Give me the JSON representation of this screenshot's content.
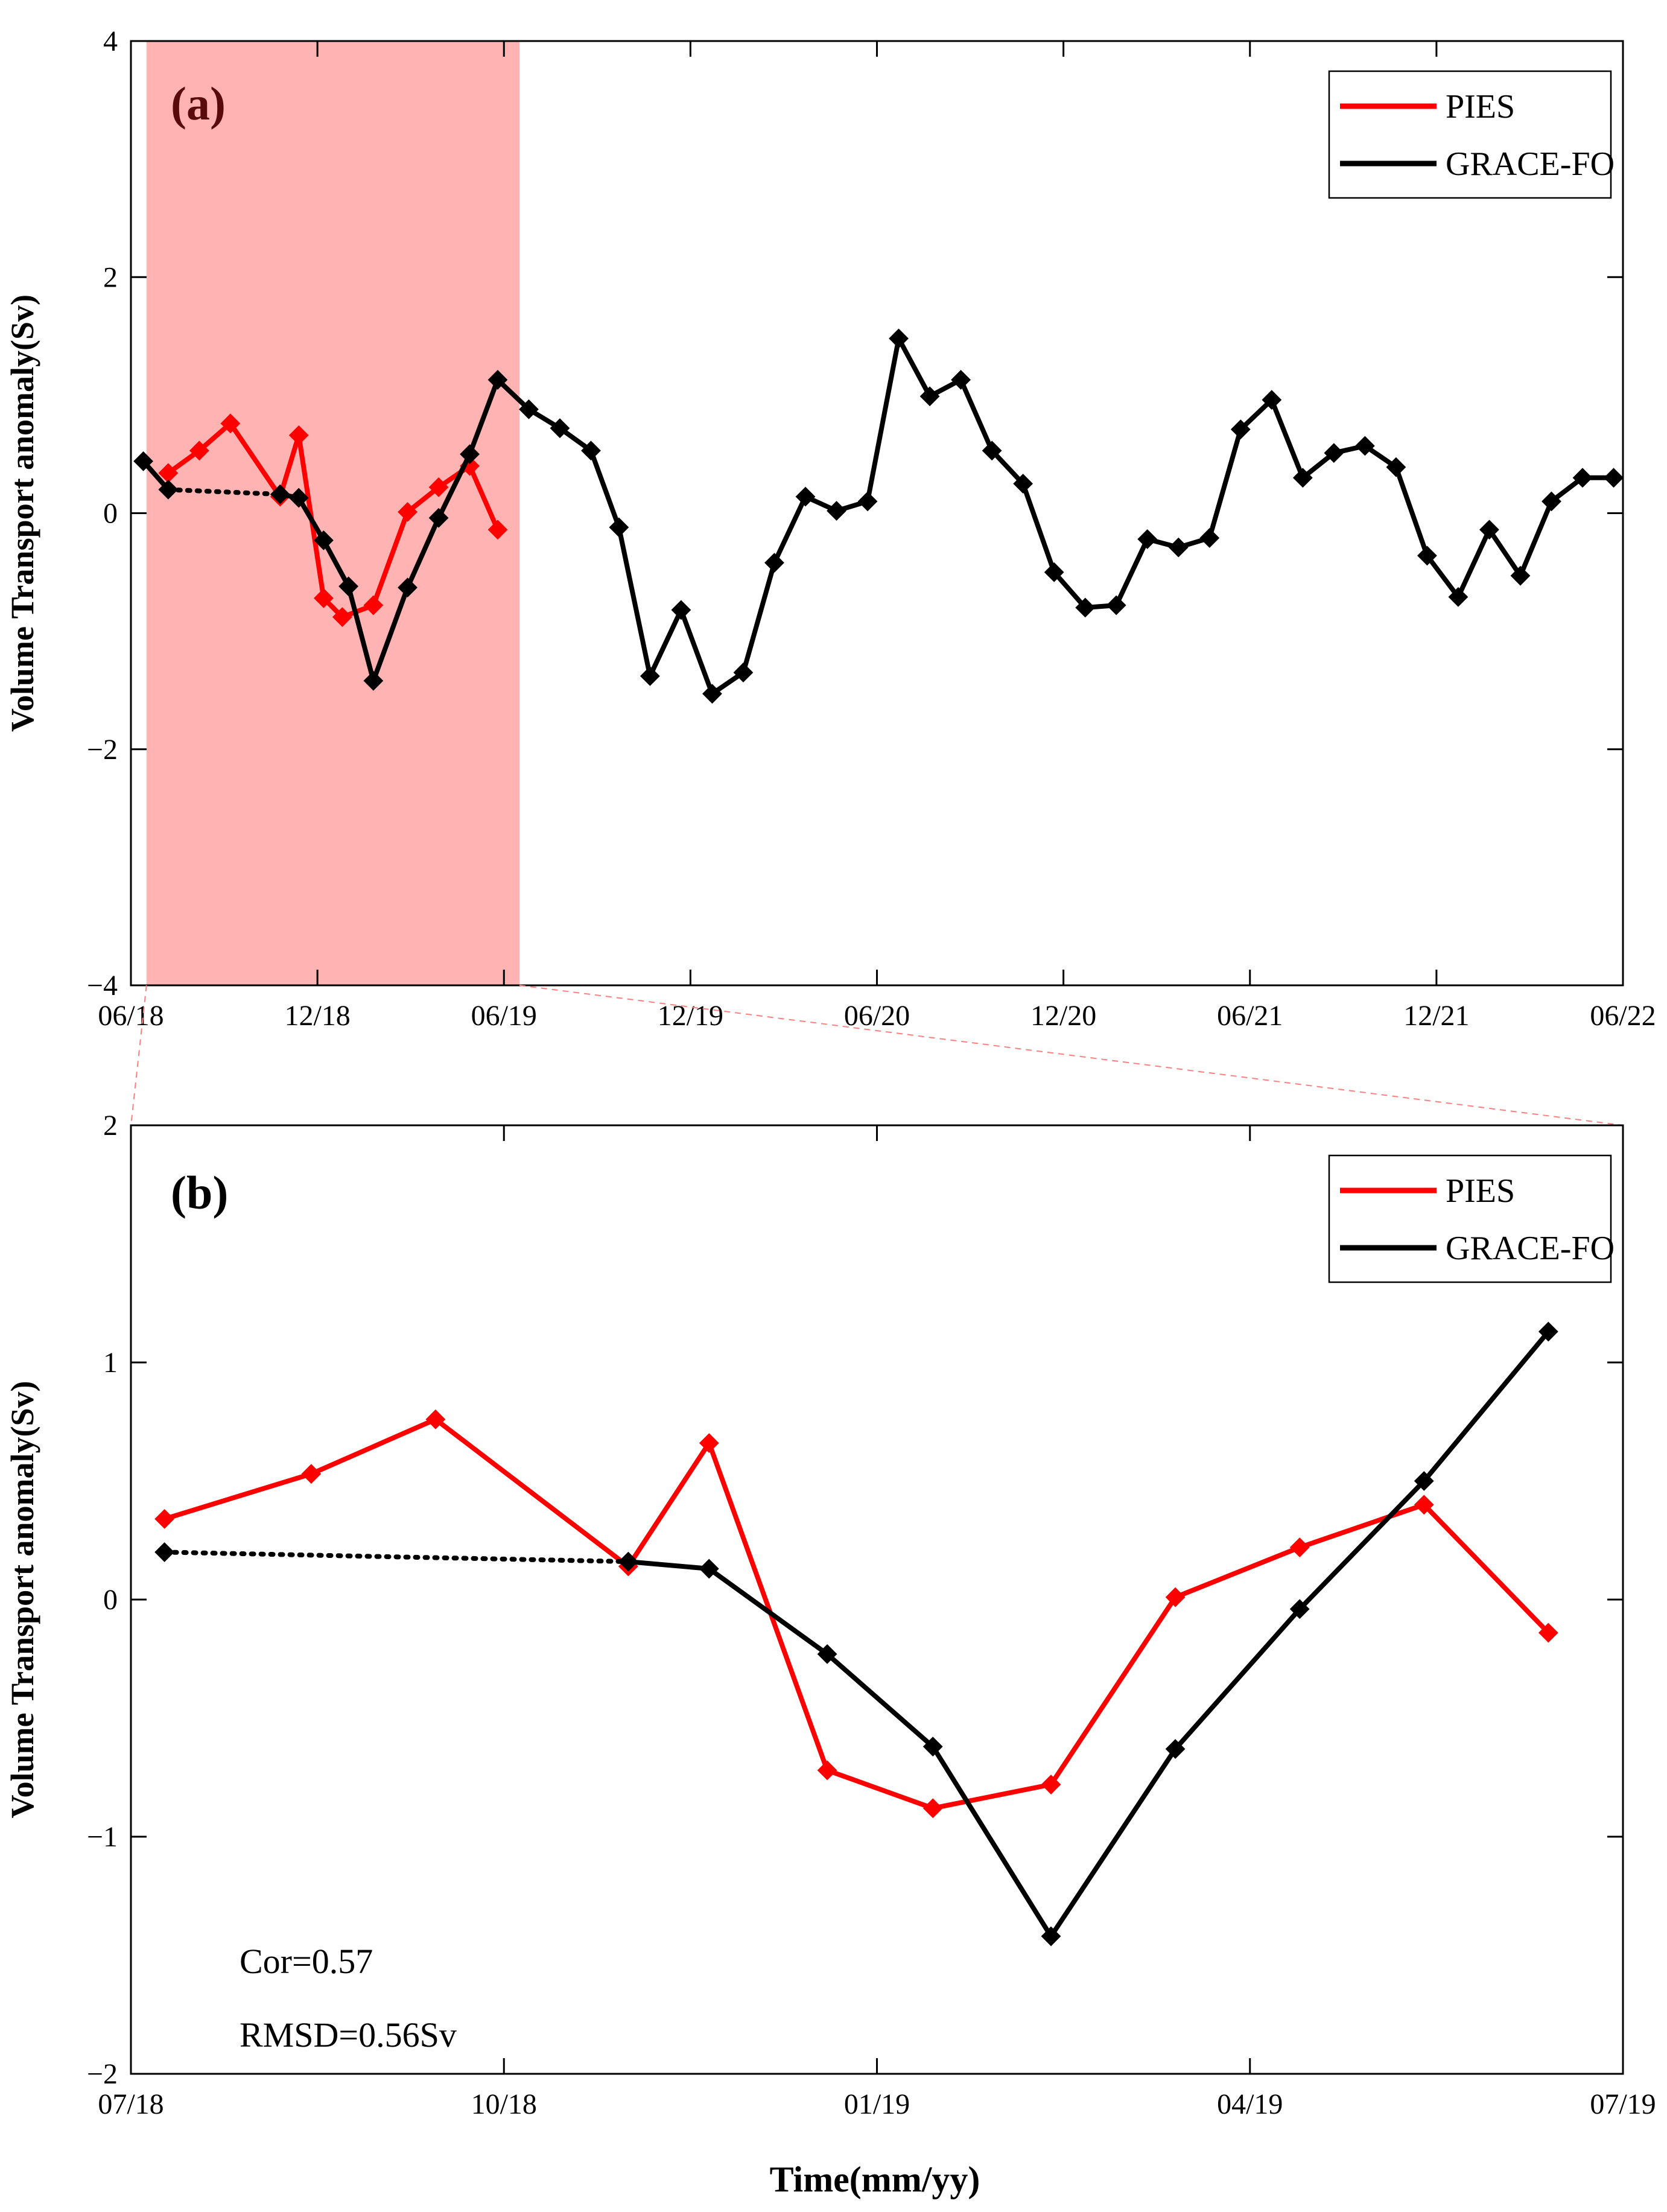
{
  "figure": {
    "xlabel": "Time(mm/yy)"
  },
  "chart_data": [
    {
      "panel": "a",
      "type": "line",
      "panel_label": "(a)",
      "ylabel": "Volume Transport anomaly(Sv)",
      "xlabel": "",
      "ylim": [
        -4,
        4
      ],
      "yticks": [
        -4,
        -2,
        0,
        2,
        4
      ],
      "ytick_labels": [
        "−4",
        "−2",
        "0",
        "2",
        "4"
      ],
      "xlim": [
        0,
        48
      ],
      "xticks": [
        0,
        6,
        12,
        18,
        24,
        30,
        36,
        42,
        48
      ],
      "xtick_labels": [
        "06/18",
        "12/18",
        "06/19",
        "12/19",
        "06/20",
        "12/20",
        "06/21",
        "12/21",
        "06/22"
      ],
      "shaded_region": {
        "x": [
          0.5,
          12.5
        ],
        "color": "#ffb3b3"
      },
      "legend": [
        {
          "label": "PIES",
          "color": "#ff0000"
        },
        {
          "label": "GRACE-FO",
          "color": "#000000"
        }
      ],
      "series": [
        {
          "name": "PIES",
          "color": "#ff0000",
          "x": [
            1.2,
            2.2,
            3.2,
            4.8,
            5.4,
            6.2,
            6.8,
            7.8,
            8.9,
            9.9,
            10.9,
            11.8
          ],
          "values": [
            0.34,
            0.53,
            0.76,
            0.14,
            0.66,
            -0.72,
            -0.88,
            -0.78,
            0.01,
            0.22,
            0.4,
            -0.14
          ]
        },
        {
          "name": "GRACE-FO",
          "color": "#000000",
          "gap_after_index": 1,
          "x": [
            0.4,
            1.2,
            4.8,
            5.4,
            6.2,
            7.0,
            7.8,
            8.9,
            9.9,
            10.9,
            11.8,
            12.8,
            13.8,
            14.8,
            15.7,
            16.7,
            17.7,
            18.7,
            19.7,
            20.7,
            21.7,
            22.7,
            23.7,
            24.7,
            25.7,
            26.7,
            27.7,
            28.7,
            29.7,
            30.7,
            31.7,
            32.7,
            33.7,
            34.7,
            35.7,
            36.7,
            37.7,
            38.7,
            39.7,
            40.7,
            41.7,
            42.7,
            43.7,
            44.7,
            45.7,
            46.7,
            47.7
          ],
          "values": [
            0.44,
            0.2,
            0.16,
            0.13,
            -0.23,
            -0.62,
            -1.42,
            -0.63,
            -0.04,
            0.5,
            1.13,
            0.88,
            0.72,
            0.53,
            -0.12,
            -1.38,
            -0.82,
            -1.53,
            -1.35,
            -0.42,
            0.14,
            0.02,
            0.1,
            1.48,
            0.99,
            1.13,
            0.53,
            0.25,
            -0.5,
            -0.8,
            -0.78,
            -0.22,
            -0.29,
            -0.21,
            0.71,
            0.96,
            0.3,
            0.51,
            0.57,
            0.39,
            -0.36,
            -0.71,
            -0.14,
            -0.53,
            0.1,
            0.3,
            0.3
          ]
        }
      ]
    },
    {
      "panel": "b",
      "type": "line",
      "panel_label": "(b)",
      "ylabel": "Volume Transport anomaly(Sv)",
      "xlabel": "Time(mm/yy)",
      "ylim": [
        -2,
        2
      ],
      "yticks": [
        -2,
        -1,
        0,
        1,
        2
      ],
      "ytick_labels": [
        "−2",
        "−1",
        "0",
        "1",
        "2"
      ],
      "xlim": [
        0,
        12
      ],
      "xticks": [
        0,
        3,
        6,
        9,
        12
      ],
      "xtick_labels": [
        "07/18",
        "10/18",
        "01/19",
        "04/19",
        "07/19"
      ],
      "legend": [
        {
          "label": "PIES",
          "color": "#ff0000"
        },
        {
          "label": "GRACE-FO",
          "color": "#000000"
        }
      ],
      "annotations": [
        "Cor=0.57",
        "RMSD=0.56Sv"
      ],
      "series": [
        {
          "name": "PIES",
          "color": "#ff0000",
          "x": [
            0.27,
            1.45,
            2.45,
            4.0,
            4.65,
            5.6,
            6.45,
            7.4,
            8.4,
            9.4,
            10.4,
            11.4
          ],
          "values": [
            0.34,
            0.53,
            0.76,
            0.14,
            0.66,
            -0.72,
            -0.88,
            -0.78,
            0.01,
            0.22,
            0.4,
            -0.14
          ]
        },
        {
          "name": "GRACE-FO",
          "color": "#000000",
          "gap_after_index": 0,
          "x": [
            0.27,
            4.0,
            4.65,
            5.6,
            6.45,
            7.4,
            8.4,
            9.4,
            10.4,
            11.4
          ],
          "values": [
            0.2,
            0.16,
            0.13,
            -0.23,
            -0.62,
            -1.42,
            -0.63,
            -0.04,
            0.5,
            1.13
          ]
        }
      ]
    }
  ]
}
